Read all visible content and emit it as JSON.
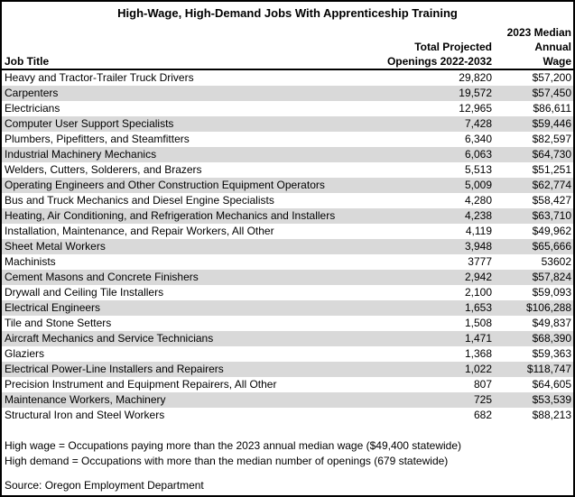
{
  "chart_data": {
    "type": "table",
    "title": "High-Wage, High-Demand Jobs With Apprenticeship Training",
    "columns": [
      "Job Title",
      "Total Projected Openings 2022-2032",
      "2023 Median Annual Wage"
    ],
    "rows": [
      [
        "Heavy and Tractor-Trailer Truck Drivers",
        "29,820",
        "$57,200"
      ],
      [
        "Carpenters",
        "19,572",
        "$57,450"
      ],
      [
        "Electricians",
        "12,965",
        "$86,611"
      ],
      [
        "Computer User Support Specialists",
        "7,428",
        "$59,446"
      ],
      [
        "Plumbers, Pipefitters, and Steamfitters",
        "6,340",
        "$82,597"
      ],
      [
        "Industrial Machinery Mechanics",
        "6,063",
        "$64,730"
      ],
      [
        "Welders, Cutters, Solderers, and Brazers",
        "5,513",
        "$51,251"
      ],
      [
        "Operating Engineers and Other Construction Equipment Operators",
        "5,009",
        "$62,774"
      ],
      [
        "Bus and Truck Mechanics and Diesel Engine Specialists",
        "4,280",
        "$58,427"
      ],
      [
        "Heating, Air Conditioning, and Refrigeration Mechanics and Installers",
        "4,238",
        "$63,710"
      ],
      [
        "Installation, Maintenance, and Repair Workers, All Other",
        "4,119",
        "$49,962"
      ],
      [
        "Sheet Metal Workers",
        "3,948",
        "$65,666"
      ],
      [
        "Machinists",
        "3777",
        "53602"
      ],
      [
        "Cement Masons and Concrete Finishers",
        "2,942",
        "$57,824"
      ],
      [
        "Drywall and Ceiling Tile Installers",
        "2,100",
        "$59,093"
      ],
      [
        "Electrical Engineers",
        "1,653",
        "$106,288"
      ],
      [
        "Tile and Stone Setters",
        "1,508",
        "$49,837"
      ],
      [
        "Aircraft Mechanics and Service Technicians",
        "1,471",
        "$68,390"
      ],
      [
        "Glaziers",
        "1,368",
        "$59,363"
      ],
      [
        "Electrical Power-Line Installers and Repairers",
        "1,022",
        "$118,747"
      ],
      [
        "Precision Instrument and Equipment Repairers, All Other",
        "807",
        "$64,605"
      ],
      [
        "Maintenance Workers, Machinery",
        "725",
        "$53,539"
      ],
      [
        "Structural Iron and Steel Workers",
        "682",
        "$88,213"
      ]
    ],
    "notes": [
      "High wage = Occupations paying more than the 2023 annual median wage ($49,400 statewide)",
      "High demand = Occupations with more than the median number of openings (679 statewide)"
    ],
    "source": "Source: Oregon Employment Department"
  },
  "header": {
    "job_title": "Job Title",
    "openings_lines": [
      "Total Projected",
      "Openings 2022-2032"
    ],
    "wage_lines": [
      "2023 Median",
      "Annual",
      "Wage"
    ]
  },
  "colors": {
    "row_shade": "#D9D9D9",
    "border": "#000000",
    "background": "#FFFFFF",
    "text": "#000000"
  }
}
